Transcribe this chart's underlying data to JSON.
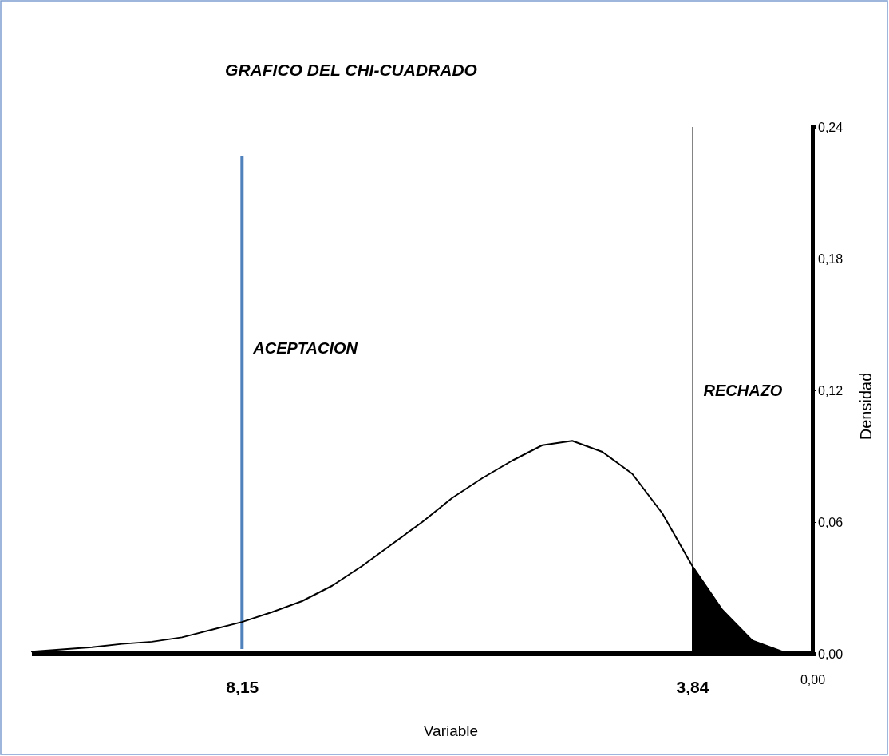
{
  "chart_data": {
    "type": "line",
    "title": "GRAFICO DEL CHI-CUADRADO",
    "xlabel": "Variable",
    "ylabel": "Densidad",
    "categories": [
      null,
      null,
      null,
      null,
      null,
      null,
      null,
      "8,15",
      null,
      null,
      null,
      null,
      null,
      null,
      null,
      null,
      null,
      null,
      null,
      null,
      null,
      null,
      "3,84",
      null,
      null,
      null,
      "0,00"
    ],
    "ylim": [
      0,
      0.24
    ],
    "yticks": [
      {
        "value": 0,
        "label": "0,00"
      },
      {
        "value": 0.06,
        "label": "0,06"
      },
      {
        "value": 0.12,
        "label": "0,12"
      },
      {
        "value": 0.18,
        "label": "0,18"
      },
      {
        "value": 0.24,
        "label": "0,24"
      }
    ],
    "series": [
      {
        "color": "#000000",
        "values": [
          0.001,
          0.002,
          0.003,
          0.0045,
          0.0055,
          0.0075,
          0.011,
          0.0145,
          0.019,
          0.024,
          0.031,
          0.04,
          0.05,
          0.06,
          0.071,
          0.08,
          0.088,
          0.095,
          0.097,
          0.092,
          0.082,
          0.064,
          0.04,
          0.02,
          0.006,
          0.001,
          0
        ]
      },
      {
        "type": "area",
        "color": "#000000",
        "values": [
          null,
          null,
          null,
          null,
          null,
          null,
          null,
          null,
          null,
          null,
          null,
          null,
          null,
          null,
          null,
          null,
          null,
          null,
          null,
          null,
          null,
          null,
          0.04,
          0.02,
          0.006,
          0.001,
          0
        ]
      }
    ],
    "ref_lines": [
      {
        "axis": "x",
        "value": "8,15",
        "color": "#4f81bd"
      },
      {
        "axis": "x",
        "value": "3,84",
        "color": "#808080"
      }
    ],
    "annotations": [
      "ACEPTACION",
      "RECHAZO"
    ],
    "grid": false
  }
}
